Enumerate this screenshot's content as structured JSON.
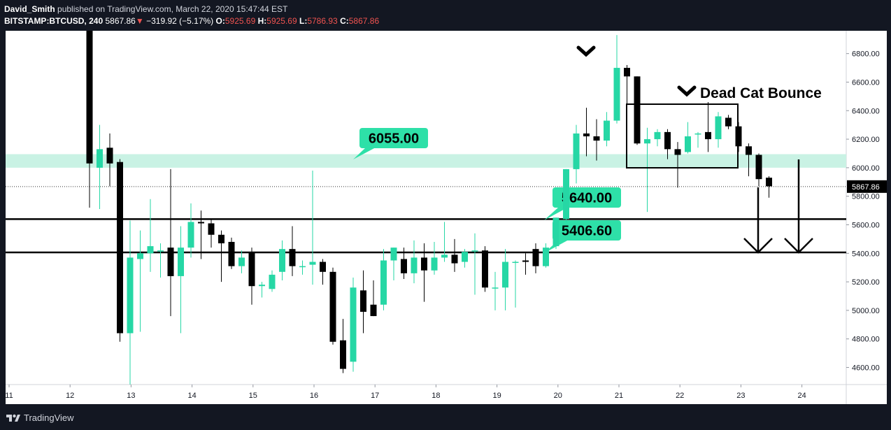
{
  "header": {
    "author": "David_Smith",
    "published": "published on TradingView.com, March 22, 2020 15:47:44 EST",
    "symbol": "BITSTAMP:BTCUSD, 240",
    "last": "5867.86",
    "change": "−319.92 (−5.17%)",
    "open_label": "O:",
    "open": "5925.69",
    "high_label": "H:",
    "high": "5925.69",
    "low_label": "L:",
    "low": "5786.93",
    "close_label": "C:",
    "close": "5867.86"
  },
  "footer": {
    "brand": "TradingView"
  },
  "colors": {
    "bg": "#131722",
    "up": "#26d7a5",
    "down": "#000000",
    "zone": "#c9f2e4",
    "label": "#2ee0a8"
  },
  "chart_data": {
    "type": "candlestick",
    "symbol": "BITSTAMP:BTCUSD",
    "interval": "240",
    "x_ticks": [
      "11",
      "12",
      "13",
      "14",
      "15",
      "16",
      "17",
      "18",
      "19",
      "20",
      "21",
      "22",
      "23",
      "24"
    ],
    "y_ticks": [
      "4600.00",
      "4800.00",
      "5000.00",
      "5200.00",
      "5400.00",
      "5600.00",
      "5800.00",
      "6000.00",
      "6200.00",
      "6400.00",
      "6600.00",
      "6800.00"
    ],
    "ylim": [
      4480,
      6960
    ],
    "last_price": "5867.86",
    "zone": [
      6000,
      6095
    ],
    "levels": [
      {
        "price": 6055.0,
        "label": "6055.00"
      },
      {
        "price": 5640.0,
        "label": "5640.00"
      },
      {
        "price": 5406.6,
        "label": "5406.60"
      }
    ],
    "annotation": "Dead Cat Bounce",
    "candles": [
      {
        "o": 7900,
        "h": 7900,
        "l": 5720,
        "c": 6030
      },
      {
        "o": 6000,
        "h": 6300,
        "l": 5710,
        "c": 6130
      },
      {
        "o": 6140,
        "h": 6240,
        "l": 5870,
        "c": 6030
      },
      {
        "o": 6040,
        "h": 6060,
        "l": 4780,
        "c": 4840
      },
      {
        "o": 4840,
        "h": 5630,
        "l": 4470,
        "c": 5370
      },
      {
        "o": 5360,
        "h": 5560,
        "l": 4850,
        "c": 5400
      },
      {
        "o": 5400,
        "h": 5780,
        "l": 5270,
        "c": 5450
      },
      {
        "o": 5420,
        "h": 5470,
        "l": 5230,
        "c": 5420
      },
      {
        "o": 5440,
        "h": 5990,
        "l": 4960,
        "c": 5240
      },
      {
        "o": 5240,
        "h": 5590,
        "l": 4840,
        "c": 5440
      },
      {
        "o": 5440,
        "h": 5750,
        "l": 5370,
        "c": 5620
      },
      {
        "o": 5620,
        "h": 5700,
        "l": 5360,
        "c": 5610
      },
      {
        "o": 5610,
        "h": 5640,
        "l": 5440,
        "c": 5530
      },
      {
        "o": 5530,
        "h": 5560,
        "l": 5200,
        "c": 5470
      },
      {
        "o": 5480,
        "h": 5510,
        "l": 5290,
        "c": 5310
      },
      {
        "o": 5310,
        "h": 5420,
        "l": 5260,
        "c": 5370
      },
      {
        "o": 5410,
        "h": 5440,
        "l": 5040,
        "c": 5170
      },
      {
        "o": 5170,
        "h": 5200,
        "l": 5090,
        "c": 5180
      },
      {
        "o": 5150,
        "h": 5280,
        "l": 5130,
        "c": 5250
      },
      {
        "o": 5270,
        "h": 5490,
        "l": 5210,
        "c": 5430
      },
      {
        "o": 5430,
        "h": 5590,
        "l": 5240,
        "c": 5310
      },
      {
        "o": 5310,
        "h": 5350,
        "l": 5250,
        "c": 5310
      },
      {
        "o": 5320,
        "h": 5980,
        "l": 5180,
        "c": 5340
      },
      {
        "o": 5340,
        "h": 5360,
        "l": 5180,
        "c": 5270
      },
      {
        "o": 5270,
        "h": 5300,
        "l": 4760,
        "c": 4780
      },
      {
        "o": 4790,
        "h": 4940,
        "l": 4560,
        "c": 4590
      },
      {
        "o": 4640,
        "h": 5230,
        "l": 4570,
        "c": 5160
      },
      {
        "o": 5140,
        "h": 5280,
        "l": 4840,
        "c": 4990
      },
      {
        "o": 5040,
        "h": 5210,
        "l": 4960,
        "c": 4960
      },
      {
        "o": 5040,
        "h": 5430,
        "l": 5000,
        "c": 5350
      },
      {
        "o": 5350,
        "h": 5440,
        "l": 5210,
        "c": 5440
      },
      {
        "o": 5360,
        "h": 5440,
        "l": 5220,
        "c": 5260
      },
      {
        "o": 5260,
        "h": 5490,
        "l": 5190,
        "c": 5370
      },
      {
        "o": 5370,
        "h": 5470,
        "l": 5060,
        "c": 5280
      },
      {
        "o": 5280,
        "h": 5480,
        "l": 5250,
        "c": 5370
      },
      {
        "o": 5370,
        "h": 5620,
        "l": 5340,
        "c": 5390
      },
      {
        "o": 5390,
        "h": 5500,
        "l": 5270,
        "c": 5330
      },
      {
        "o": 5340,
        "h": 5430,
        "l": 5300,
        "c": 5410
      },
      {
        "o": 5420,
        "h": 5540,
        "l": 5110,
        "c": 5420
      },
      {
        "o": 5420,
        "h": 5450,
        "l": 5130,
        "c": 5160
      },
      {
        "o": 5160,
        "h": 5270,
        "l": 5000,
        "c": 5160
      },
      {
        "o": 5160,
        "h": 5430,
        "l": 5000,
        "c": 5340
      },
      {
        "o": 5340,
        "h": 5350,
        "l": 5020,
        "c": 5340
      },
      {
        "o": 5350,
        "h": 5400,
        "l": 5250,
        "c": 5340
      },
      {
        "o": 5430,
        "h": 5470,
        "l": 5260,
        "c": 5310
      },
      {
        "o": 5310,
        "h": 5470,
        "l": 5300,
        "c": 5440
      },
      {
        "o": 5450,
        "h": 5650,
        "l": 5430,
        "c": 5650
      },
      {
        "o": 5640,
        "h": 5990,
        "l": 5620,
        "c": 5990
      },
      {
        "o": 5990,
        "h": 6300,
        "l": 5890,
        "c": 6240
      },
      {
        "o": 6240,
        "h": 6420,
        "l": 6080,
        "c": 6220
      },
      {
        "o": 6220,
        "h": 6340,
        "l": 6050,
        "c": 6190
      },
      {
        "o": 6190,
        "h": 6390,
        "l": 6150,
        "c": 6330
      },
      {
        "o": 6330,
        "h": 6930,
        "l": 6310,
        "c": 6700
      },
      {
        "o": 6700,
        "h": 6720,
        "l": 6450,
        "c": 6640
      },
      {
        "o": 6640,
        "h": 6640,
        "l": 6160,
        "c": 6170
      },
      {
        "o": 6170,
        "h": 6280,
        "l": 5690,
        "c": 6200
      },
      {
        "o": 6200,
        "h": 6270,
        "l": 6150,
        "c": 6250
      },
      {
        "o": 6250,
        "h": 6270,
        "l": 6060,
        "c": 6130
      },
      {
        "o": 6130,
        "h": 6180,
        "l": 5860,
        "c": 6090
      },
      {
        "o": 6110,
        "h": 6320,
        "l": 6100,
        "c": 6220
      },
      {
        "o": 6240,
        "h": 6250,
        "l": 6140,
        "c": 6240
      },
      {
        "o": 6250,
        "h": 6460,
        "l": 6110,
        "c": 6200
      },
      {
        "o": 6200,
        "h": 6390,
        "l": 6140,
        "c": 6360
      },
      {
        "o": 6350,
        "h": 6370,
        "l": 6270,
        "c": 6290
      },
      {
        "o": 6290,
        "h": 6320,
        "l": 6110,
        "c": 6150
      },
      {
        "o": 6150,
        "h": 6170,
        "l": 5940,
        "c": 6090
      },
      {
        "o": 6090,
        "h": 6100,
        "l": 5870,
        "c": 5920
      },
      {
        "o": 5930,
        "h": 5940,
        "l": 5790,
        "c": 5870
      }
    ]
  }
}
